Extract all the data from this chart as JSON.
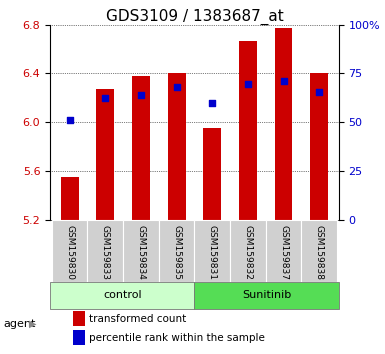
{
  "title": "GDS3109 / 1383687_at",
  "samples": [
    "GSM159830",
    "GSM159833",
    "GSM159834",
    "GSM159835",
    "GSM159831",
    "GSM159832",
    "GSM159837",
    "GSM159838"
  ],
  "red_values": [
    5.55,
    6.27,
    6.38,
    6.405,
    5.95,
    6.67,
    6.77,
    6.405
  ],
  "blue_values": [
    6.02,
    6.2,
    6.22,
    6.285,
    6.16,
    6.315,
    6.335,
    6.25
  ],
  "y_min": 5.2,
  "y_max": 6.8,
  "y_ticks": [
    5.2,
    5.6,
    6.0,
    6.4,
    6.8
  ],
  "y_right_pcts": [
    0,
    25,
    50,
    75,
    100
  ],
  "y_right_labels": [
    "0",
    "25",
    "50",
    "75",
    "100%"
  ],
  "bar_bottom": 5.2,
  "bar_color": "#cc0000",
  "blue_color": "#0000cc",
  "group_labels": [
    "control",
    "Sunitinib"
  ],
  "group_colors": [
    "#ccffcc",
    "#55dd55"
  ],
  "legend_red": "transformed count",
  "legend_blue": "percentile rank within the sample",
  "left_tick_color": "#cc0000",
  "right_tick_color": "#0000cc",
  "agent_label": "agent",
  "title_fontsize": 11,
  "tick_fontsize": 8,
  "sample_fontsize": 6.5,
  "group_fontsize": 8,
  "legend_fontsize": 7.5,
  "bar_width": 0.5
}
